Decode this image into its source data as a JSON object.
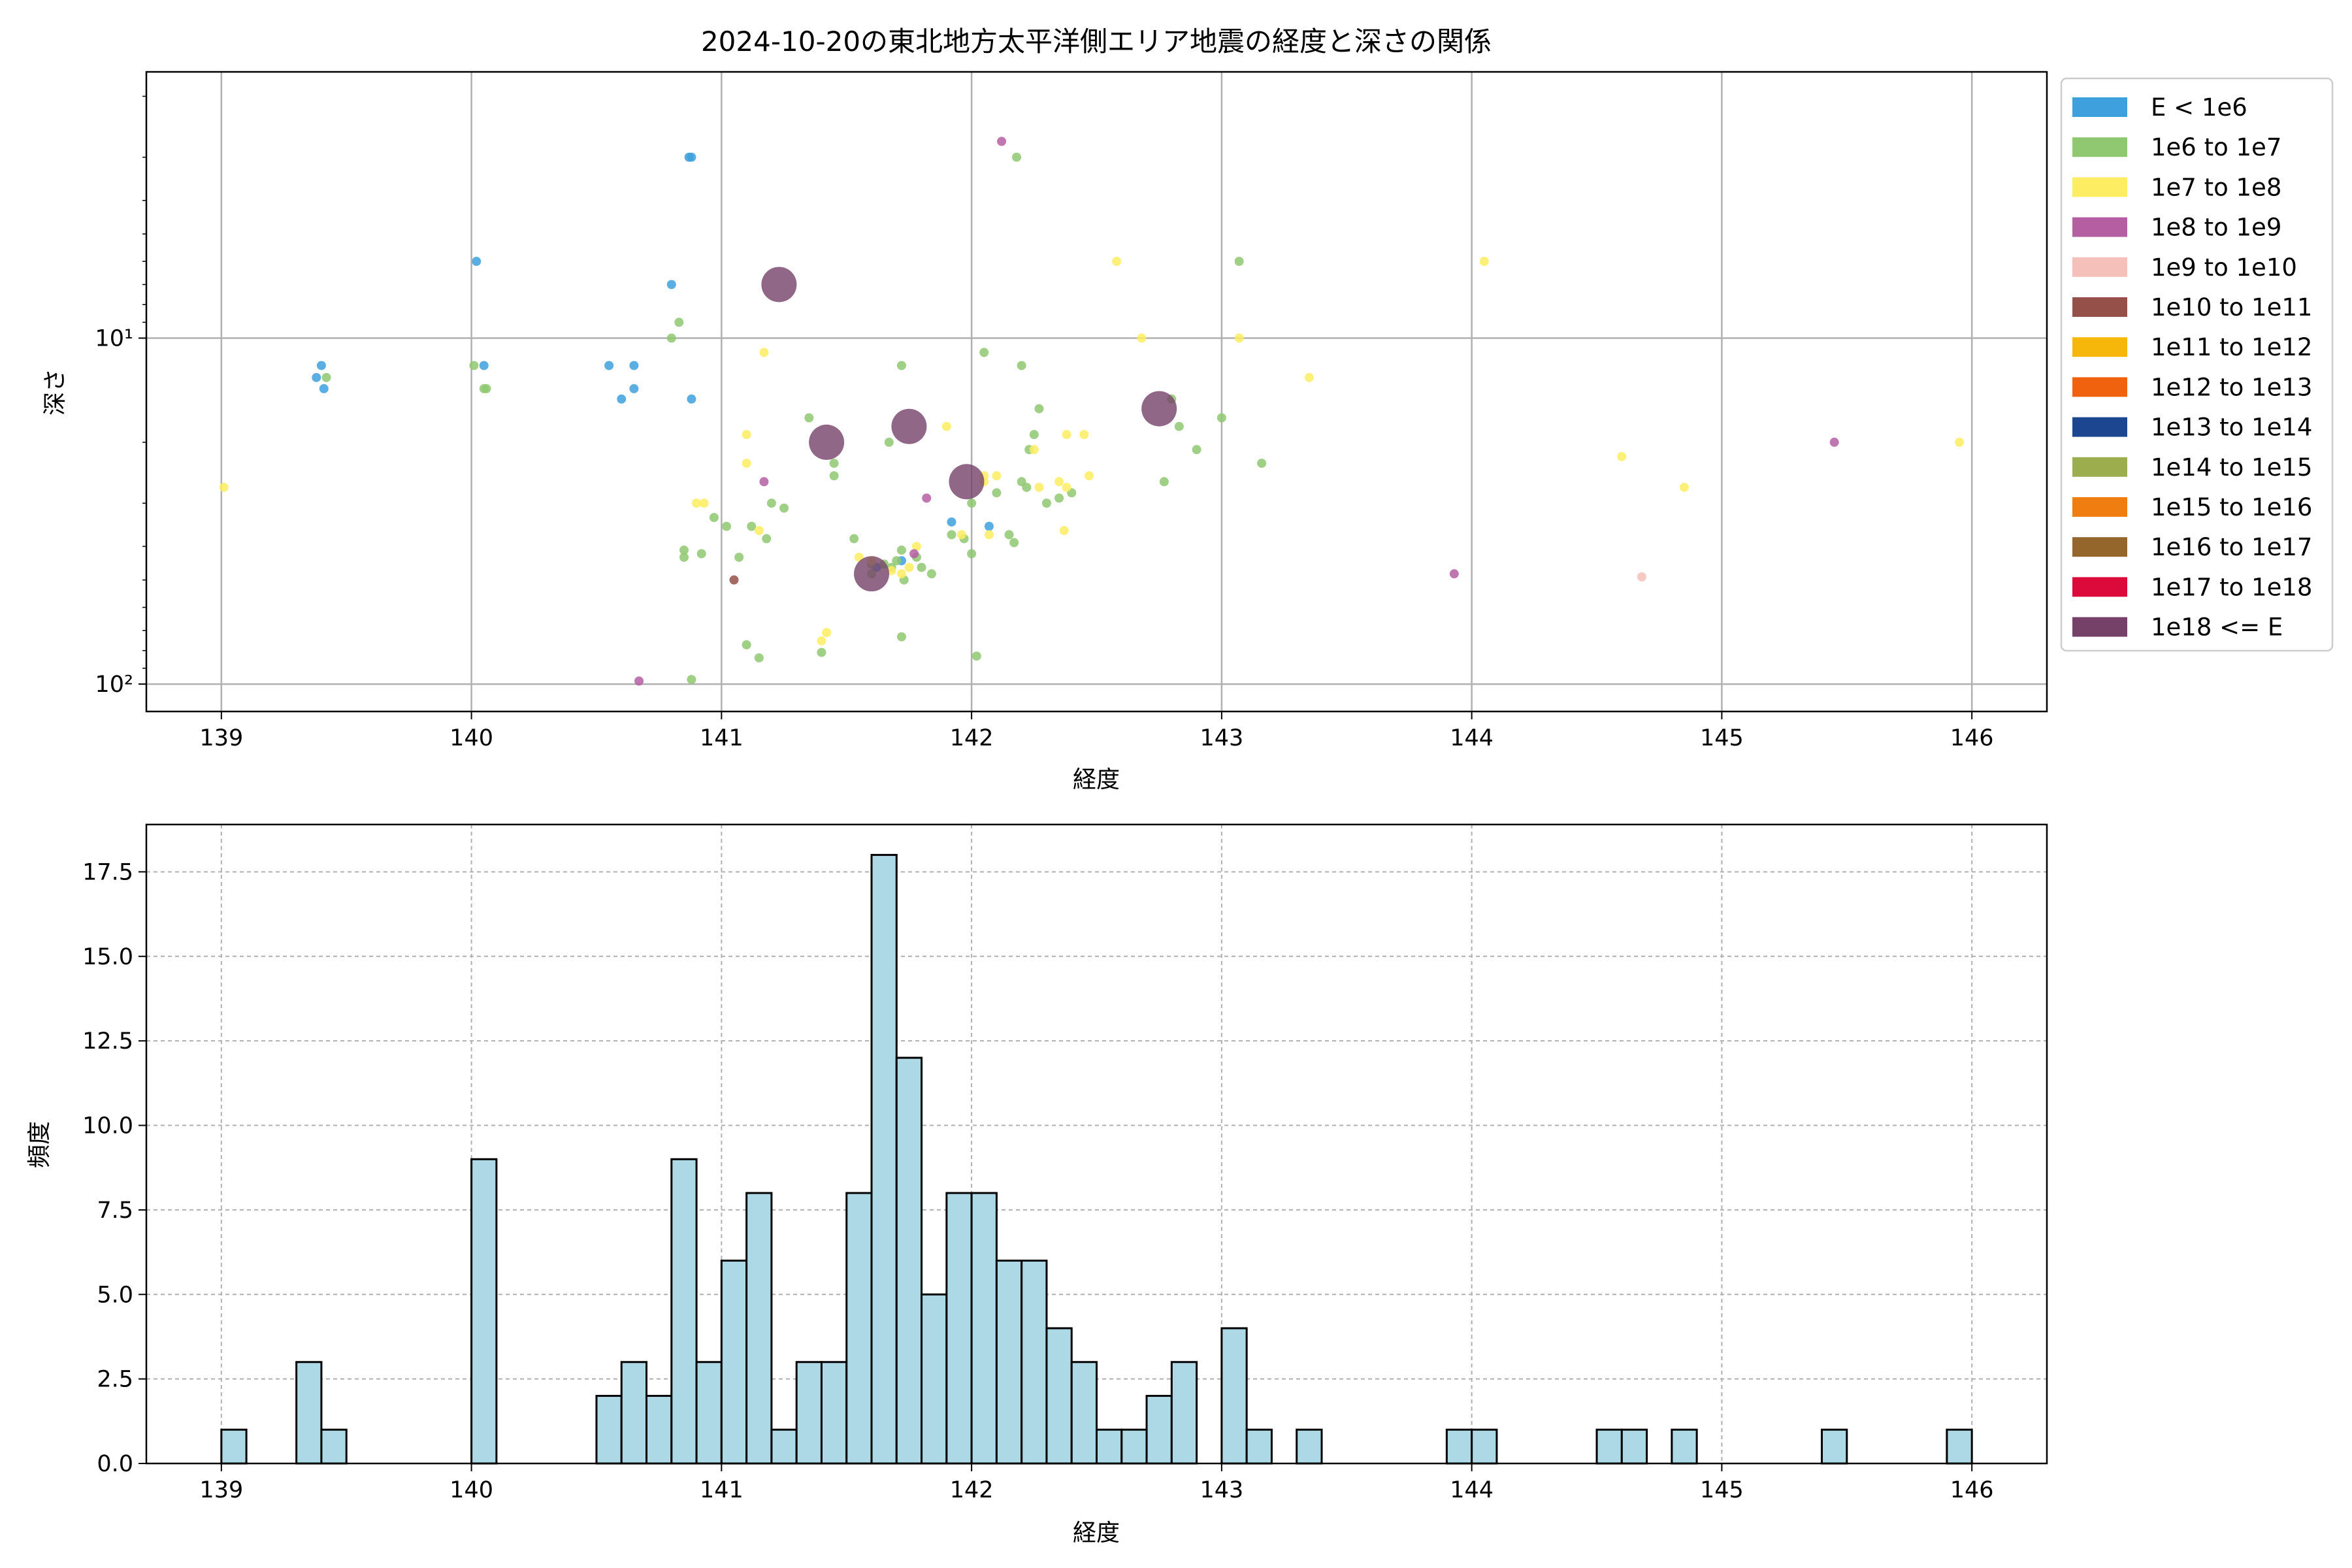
{
  "chart_data": [
    {
      "type": "scatter",
      "title": "2024-10-20の東北地方太平洋側エリア地震の経度と深さの関係",
      "xlabel": "経度",
      "ylabel": "深さ",
      "xlim": [
        138.7,
        146.3
      ],
      "ylim": [
        120,
        1.7
      ],
      "y_scale": "log",
      "y_inverted": true,
      "grid": true,
      "legend_position": "outside-right",
      "x_ticks": [
        "139",
        "140",
        "141",
        "142",
        "143",
        "144",
        "145",
        "146"
      ],
      "y_ticks": [
        {
          "value": 10,
          "label": "10¹"
        },
        {
          "value": 100,
          "label": "10²"
        }
      ],
      "legend": [
        {
          "label": "E < 1e6",
          "color": "#3ea0dc"
        },
        {
          "label": "1e6 to 1e7",
          "color": "#8fc870"
        },
        {
          "label": "1e7 to 1e8",
          "color": "#fced62"
        },
        {
          "label": "1e8 to 1e9",
          "color": "#b55ea2"
        },
        {
          "label": "1e9 to 1e10",
          "color": "#f5c0b9"
        },
        {
          "label": "1e10 to 1e11",
          "color": "#945049"
        },
        {
          "label": "1e11 to 1e12",
          "color": "#f6b60a"
        },
        {
          "label": "1e12 to 1e13",
          "color": "#f0620e"
        },
        {
          "label": "1e13 to 1e14",
          "color": "#1c4690"
        },
        {
          "label": "1e14 to 1e15",
          "color": "#9cad4d"
        },
        {
          "label": "1e15 to 1e16",
          "color": "#ef7d10"
        },
        {
          "label": "1e16 to 1e17",
          "color": "#94662b"
        },
        {
          "label": "1e17 to 1e18",
          "color": "#dc0a3a"
        },
        {
          "label": "1e18 <= E",
          "color": "#754169"
        }
      ],
      "series": [
        {
          "category": "E < 1e6",
          "color": "#3ea0dc",
          "size": "small",
          "points": [
            [
              139.4,
              12
            ],
            [
              139.38,
              13
            ],
            [
              139.41,
              14
            ],
            [
              140.02,
              6
            ],
            [
              140.05,
              12
            ],
            [
              140.55,
              12
            ],
            [
              140.6,
              15
            ],
            [
              140.65,
              12
            ],
            [
              140.65,
              14
            ],
            [
              140.8,
              7
            ],
            [
              140.87,
              3
            ],
            [
              140.88,
              3
            ],
            [
              140.88,
              15
            ],
            [
              141.62,
              46
            ],
            [
              141.72,
              44
            ],
            [
              141.92,
              34
            ],
            [
              142.07,
              35
            ]
          ]
        },
        {
          "category": "1e6 to 1e7",
          "color": "#8fc870",
          "size": "small",
          "points": [
            [
              139.42,
              13
            ],
            [
              140.01,
              12
            ],
            [
              140.05,
              14
            ],
            [
              140.06,
              14
            ],
            [
              140.8,
              10
            ],
            [
              140.83,
              9
            ],
            [
              142.18,
              3
            ],
            [
              141.07,
              43
            ],
            [
              141.12,
              35
            ],
            [
              141.2,
              30
            ],
            [
              141.25,
              31
            ],
            [
              141.35,
              17
            ],
            [
              141.45,
              25
            ],
            [
              141.53,
              38
            ],
            [
              141.6,
              45
            ],
            [
              141.65,
              45
            ],
            [
              141.67,
              20
            ],
            [
              141.7,
              44
            ],
            [
              141.72,
              41
            ],
            [
              141.73,
              50
            ],
            [
              141.72,
              12
            ],
            [
              141.78,
              43
            ],
            [
              141.8,
              46
            ],
            [
              141.84,
              48
            ],
            [
              141.92,
              37
            ],
            [
              141.97,
              38
            ],
            [
              142.0,
              42
            ],
            [
              142.05,
              11
            ],
            [
              142.1,
              28
            ],
            [
              142.15,
              37
            ],
            [
              142.17,
              39
            ],
            [
              142.2,
              12
            ],
            [
              142.22,
              27
            ],
            [
              142.25,
              19
            ],
            [
              142.27,
              16
            ],
            [
              142.3,
              30
            ],
            [
              142.8,
              15
            ],
            [
              142.83,
              18
            ],
            [
              142.9,
              21
            ],
            [
              142.77,
              26
            ],
            [
              143.0,
              17
            ],
            [
              143.07,
              6
            ],
            [
              143.16,
              23
            ],
            [
              142.02,
              83
            ],
            [
              141.4,
              81
            ],
            [
              140.85,
              41
            ],
            [
              140.85,
              43
            ],
            [
              140.92,
              42
            ],
            [
              140.97,
              33
            ],
            [
              141.02,
              35
            ],
            [
              141.1,
              77
            ],
            [
              141.15,
              84
            ],
            [
              141.18,
              38
            ],
            [
              141.45,
              23
            ],
            [
              141.6,
              48
            ],
            [
              141.68,
              46
            ],
            [
              141.72,
              73
            ],
            [
              142.0,
              30
            ],
            [
              142.2,
              26
            ],
            [
              142.23,
              21
            ],
            [
              142.35,
              29
            ],
            [
              142.4,
              28
            ],
            [
              140.88,
              97
            ]
          ]
        },
        {
          "category": "1e7 to 1e8",
          "color": "#fced62",
          "size": "small",
          "points": [
            [
              139.01,
              27
            ],
            [
              140.9,
              30
            ],
            [
              140.93,
              30
            ],
            [
              141.1,
              19
            ],
            [
              141.1,
              23
            ],
            [
              141.15,
              36
            ],
            [
              141.17,
              11
            ],
            [
              141.4,
              75
            ],
            [
              141.42,
              71
            ],
            [
              141.55,
              43
            ],
            [
              141.6,
              44
            ],
            [
              141.68,
              47
            ],
            [
              141.72,
              48
            ],
            [
              141.75,
              46
            ],
            [
              141.78,
              40
            ],
            [
              141.9,
              18
            ],
            [
              141.96,
              37
            ],
            [
              142.05,
              25
            ],
            [
              142.05,
              26
            ],
            [
              142.07,
              37
            ],
            [
              142.1,
              25
            ],
            [
              142.25,
              21
            ],
            [
              142.27,
              27
            ],
            [
              142.35,
              26
            ],
            [
              142.38,
              27
            ],
            [
              142.38,
              19
            ],
            [
              142.37,
              36
            ],
            [
              142.45,
              19
            ],
            [
              142.47,
              25
            ],
            [
              142.58,
              6
            ],
            [
              142.68,
              10
            ],
            [
              143.07,
              10
            ],
            [
              143.35,
              13
            ],
            [
              144.05,
              6
            ],
            [
              144.6,
              22
            ],
            [
              144.85,
              27
            ],
            [
              145.95,
              20
            ]
          ]
        },
        {
          "category": "1e8 to 1e9",
          "color": "#b55ea2",
          "size": "small",
          "points": [
            [
              142.12,
              2.7
            ],
            [
              141.17,
              26
            ],
            [
              141.82,
              29
            ],
            [
              141.77,
              42
            ],
            [
              140.67,
              98
            ],
            [
              143.93,
              48
            ],
            [
              145.45,
              20
            ]
          ]
        },
        {
          "category": "1e9 to 1e10",
          "color": "#f5c0b9",
          "size": "small",
          "points": [
            [
              144.68,
              49
            ]
          ]
        },
        {
          "category": "1e10 to 1e11",
          "color": "#945049",
          "size": "small",
          "points": [
            [
              141.05,
              50
            ]
          ]
        },
        {
          "category": "1e18 <= E",
          "color": "#754169",
          "size": "large",
          "points": [
            [
              141.23,
              7
            ],
            [
              141.42,
              20
            ],
            [
              141.75,
              18
            ],
            [
              141.98,
              26
            ],
            [
              142.75,
              16
            ],
            [
              141.6,
              48
            ]
          ]
        }
      ]
    },
    {
      "type": "bar",
      "subtype": "histogram",
      "xlabel": "経度",
      "ylabel": "頻度",
      "xlim": [
        138.7,
        146.3
      ],
      "ylim": [
        0,
        18.9
      ],
      "grid": true,
      "bar_color": "#add8e6",
      "edge_color": "#000000",
      "x_ticks": [
        "139",
        "140",
        "141",
        "142",
        "143",
        "144",
        "145",
        "146"
      ],
      "y_ticks": [
        "0.0",
        "2.5",
        "5.0",
        "7.5",
        "10.0",
        "12.5",
        "15.0",
        "17.5"
      ],
      "bin_width": 0.1,
      "bins": [
        {
          "x0": 139.0,
          "count": 1
        },
        {
          "x0": 139.3,
          "count": 3
        },
        {
          "x0": 139.4,
          "count": 1
        },
        {
          "x0": 140.0,
          "count": 9
        },
        {
          "x0": 140.5,
          "count": 2
        },
        {
          "x0": 140.6,
          "count": 3
        },
        {
          "x0": 140.7,
          "count": 2
        },
        {
          "x0": 140.8,
          "count": 9
        },
        {
          "x0": 140.9,
          "count": 3
        },
        {
          "x0": 141.0,
          "count": 6
        },
        {
          "x0": 141.1,
          "count": 8
        },
        {
          "x0": 141.2,
          "count": 1
        },
        {
          "x0": 141.3,
          "count": 3
        },
        {
          "x0": 141.4,
          "count": 3
        },
        {
          "x0": 141.5,
          "count": 8
        },
        {
          "x0": 141.6,
          "count": 18
        },
        {
          "x0": 141.7,
          "count": 12
        },
        {
          "x0": 141.8,
          "count": 5
        },
        {
          "x0": 141.9,
          "count": 8
        },
        {
          "x0": 142.0,
          "count": 8
        },
        {
          "x0": 142.1,
          "count": 6
        },
        {
          "x0": 142.2,
          "count": 6
        },
        {
          "x0": 142.3,
          "count": 4
        },
        {
          "x0": 142.4,
          "count": 3
        },
        {
          "x0": 142.5,
          "count": 1
        },
        {
          "x0": 142.6,
          "count": 1
        },
        {
          "x0": 142.7,
          "count": 2
        },
        {
          "x0": 142.8,
          "count": 3
        },
        {
          "x0": 143.0,
          "count": 4
        },
        {
          "x0": 143.1,
          "count": 1
        },
        {
          "x0": 143.3,
          "count": 1
        },
        {
          "x0": 143.9,
          "count": 1
        },
        {
          "x0": 144.0,
          "count": 1
        },
        {
          "x0": 144.5,
          "count": 1
        },
        {
          "x0": 144.6,
          "count": 1
        },
        {
          "x0": 144.8,
          "count": 1
        },
        {
          "x0": 145.4,
          "count": 1
        },
        {
          "x0": 145.9,
          "count": 1
        }
      ]
    }
  ]
}
